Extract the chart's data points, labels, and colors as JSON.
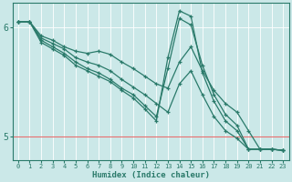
{
  "bg_color": "#cbe8e8",
  "line_color": "#2a7a6a",
  "grid_color": "#ffffff",
  "hgrid_red": "#e87070",
  "xlabel": "Humidex (Indice chaleur)",
  "xlim": [
    -0.5,
    23.5
  ],
  "ylim": [
    4.78,
    6.22
  ],
  "yticks": [
    5,
    6
  ],
  "xticks": [
    0,
    1,
    2,
    3,
    4,
    5,
    6,
    7,
    8,
    9,
    10,
    11,
    12,
    13,
    14,
    15,
    16,
    17,
    18,
    19,
    20,
    21,
    22,
    23
  ],
  "series": [
    [
      6.05,
      6.05,
      5.92,
      5.88,
      5.82,
      5.78,
      5.76,
      5.78,
      5.75,
      5.68,
      5.62,
      5.55,
      5.48,
      5.44,
      5.68,
      5.82,
      5.6,
      5.42,
      5.3,
      5.22,
      5.05,
      4.88,
      4.88,
      4.87
    ],
    [
      6.05,
      6.05,
      5.9,
      5.85,
      5.8,
      5.72,
      5.68,
      5.65,
      5.6,
      5.52,
      5.45,
      5.38,
      5.3,
      5.22,
      5.48,
      5.6,
      5.38,
      5.18,
      5.05,
      4.98,
      4.88,
      4.88,
      4.88,
      4.87
    ],
    [
      6.05,
      6.05,
      5.88,
      5.82,
      5.76,
      5.68,
      5.62,
      5.58,
      5.52,
      5.44,
      5.38,
      5.28,
      5.18,
      5.62,
      6.08,
      6.02,
      5.65,
      5.38,
      5.2,
      5.1,
      4.88,
      4.88,
      4.88,
      4.87
    ],
    [
      6.05,
      6.05,
      5.86,
      5.8,
      5.74,
      5.65,
      5.6,
      5.55,
      5.5,
      5.42,
      5.35,
      5.25,
      5.14,
      5.72,
      6.15,
      6.1,
      5.58,
      5.32,
      5.14,
      5.05,
      4.88,
      4.88,
      4.88,
      4.87
    ]
  ]
}
